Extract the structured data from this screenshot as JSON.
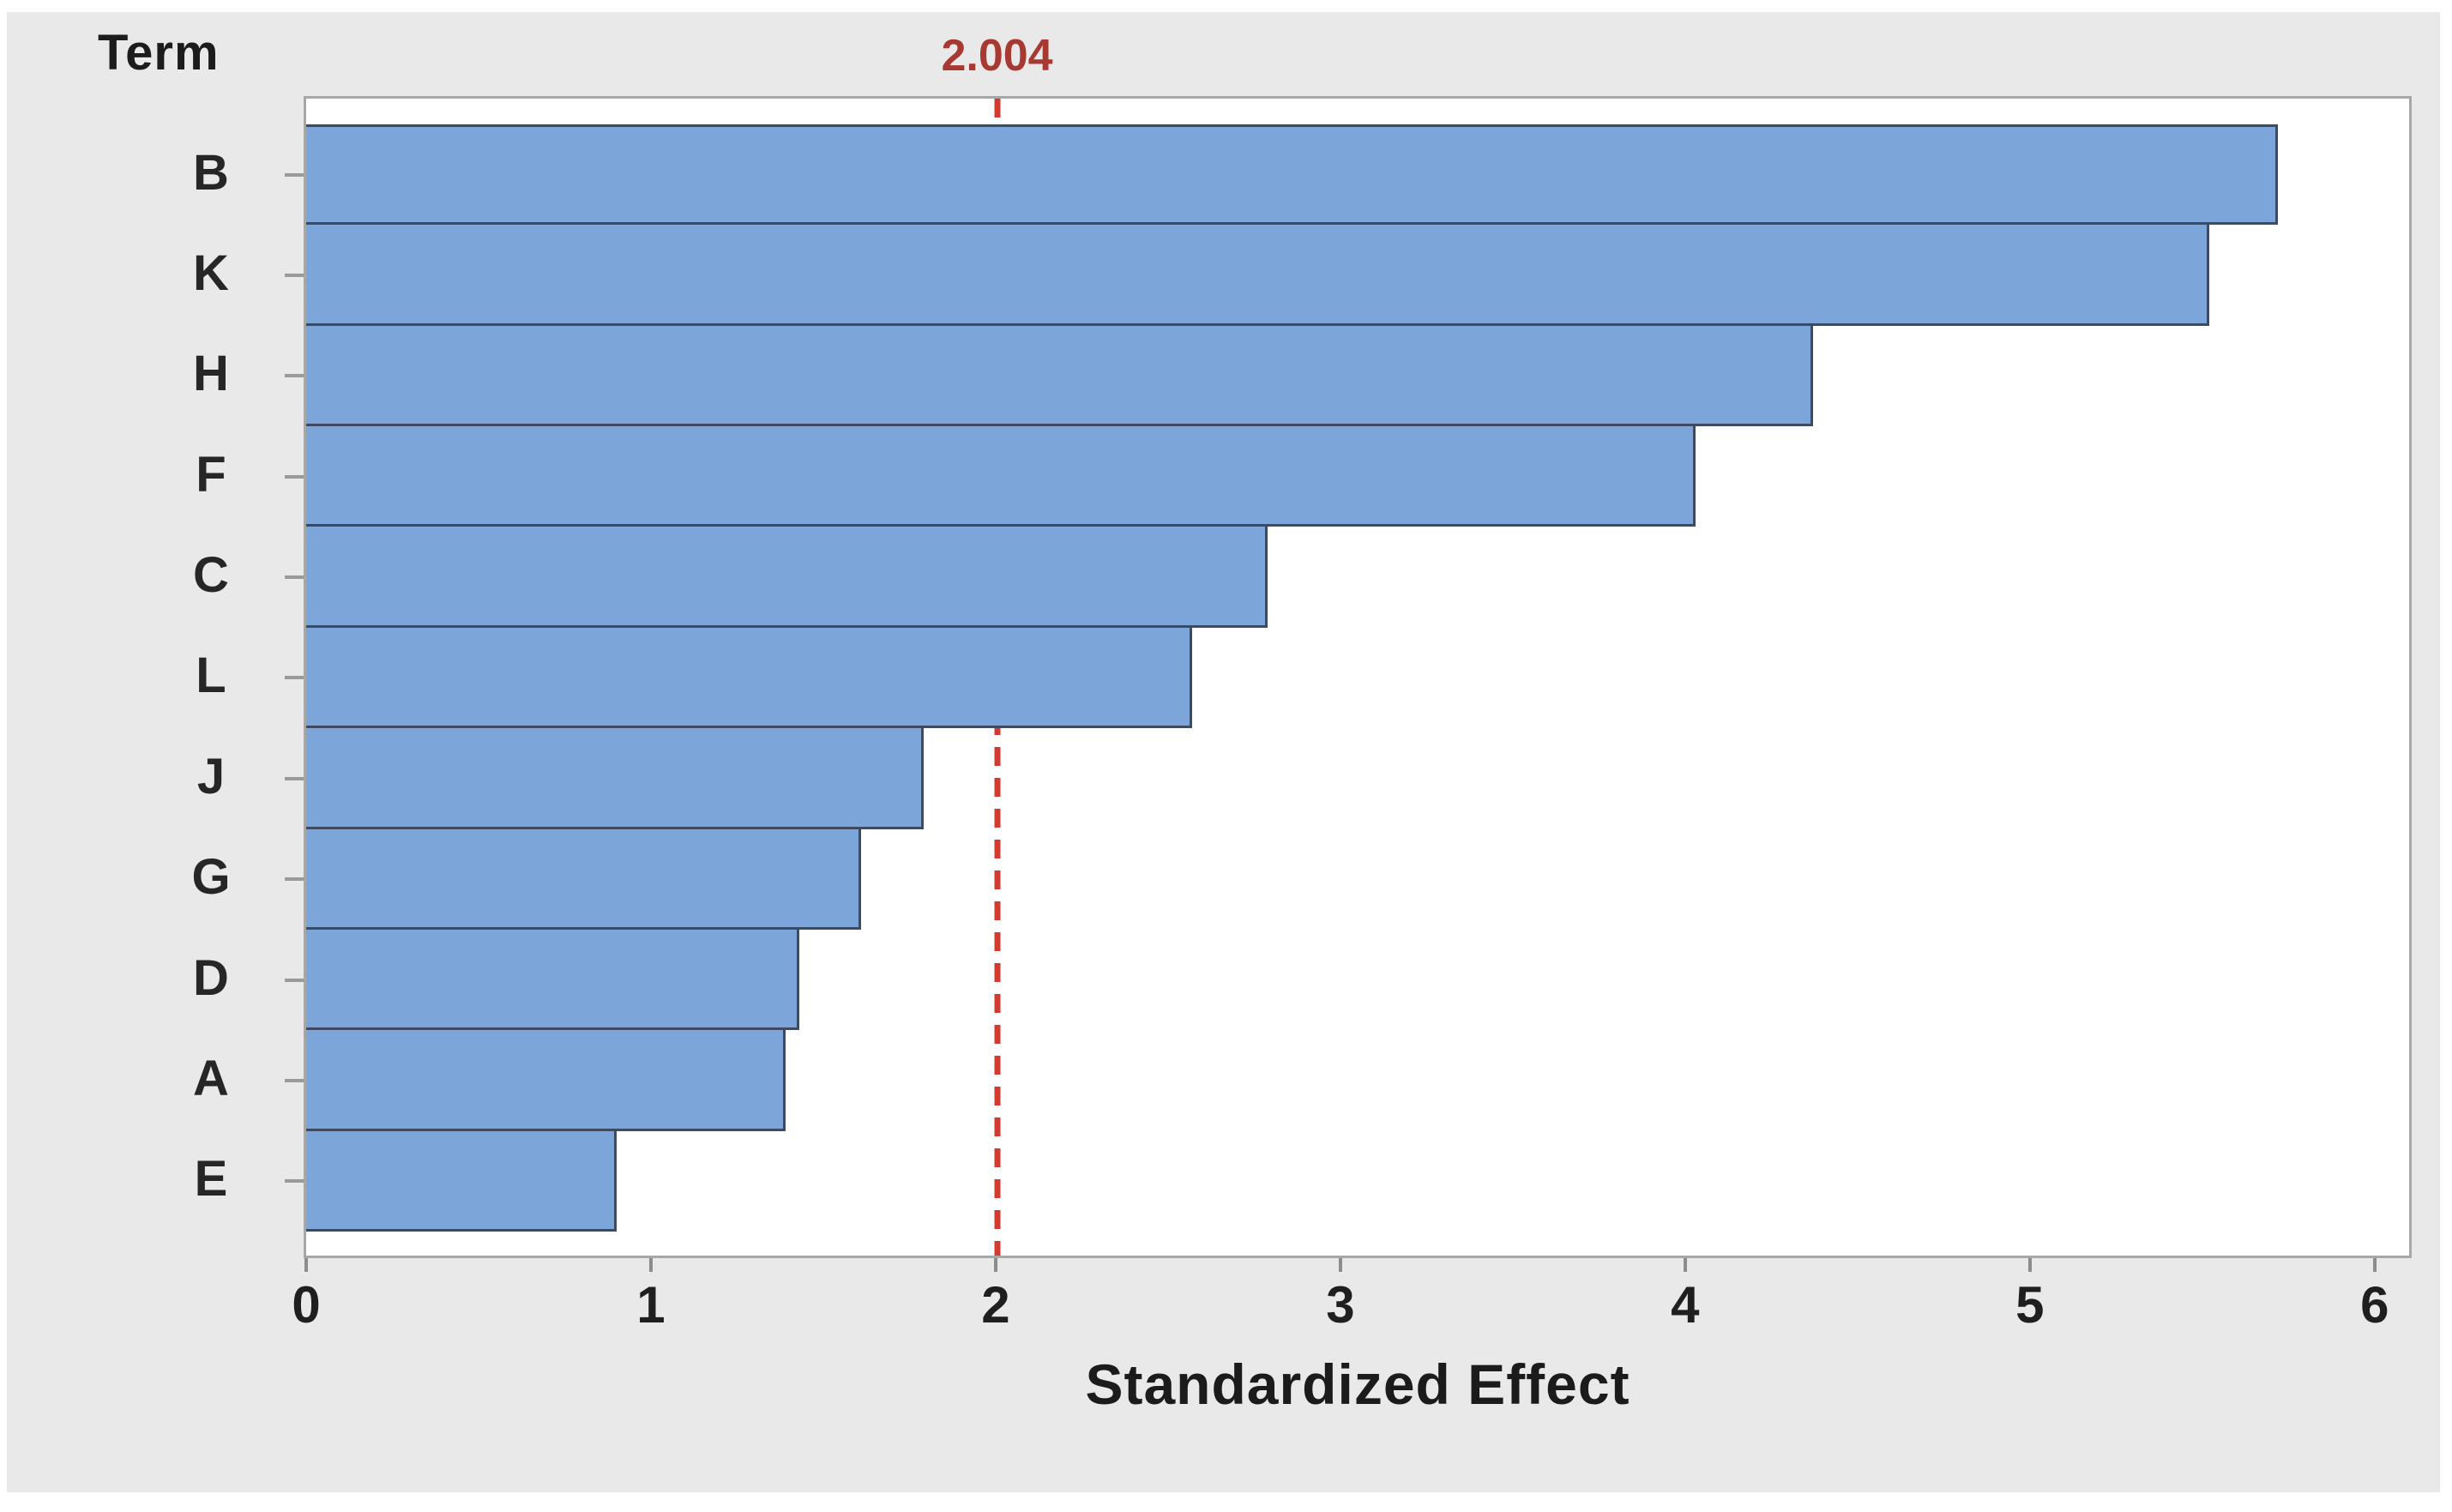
{
  "figure": {
    "y_axis_title": "Term",
    "x_axis_title": "Standardized Effect"
  },
  "chart_data": {
    "type": "bar",
    "orientation": "horizontal",
    "title": "",
    "xlabel": "Standardized Effect",
    "ylabel": "Term",
    "categories": [
      "B",
      "K",
      "H",
      "F",
      "C",
      "L",
      "J",
      "G",
      "D",
      "A",
      "E"
    ],
    "values": [
      5.72,
      5.52,
      4.37,
      4.03,
      2.79,
      2.57,
      1.79,
      1.61,
      1.43,
      1.39,
      0.9
    ],
    "x_ticks": [
      "0",
      "1",
      "2",
      "3",
      "4",
      "5",
      "6"
    ],
    "x_tick_values": [
      0,
      1,
      2,
      3,
      4,
      5,
      6
    ],
    "xlim": [
      0,
      6.1
    ],
    "grid": false,
    "legend": "none",
    "reference_line": {
      "value": 2.004,
      "label": "2.004"
    },
    "colors": {
      "bar_fill": "#7ca6d9",
      "bar_edge": "#3d4a5f",
      "reference_line": "#d23a30",
      "reference_label_text": "#a83832",
      "panel_background": "#e9e9e9",
      "plot_background": "#ffffff",
      "plot_border": "#a7a7a7",
      "tick_color": "#8c8c8c",
      "text_color": "#1f1f1f"
    }
  }
}
